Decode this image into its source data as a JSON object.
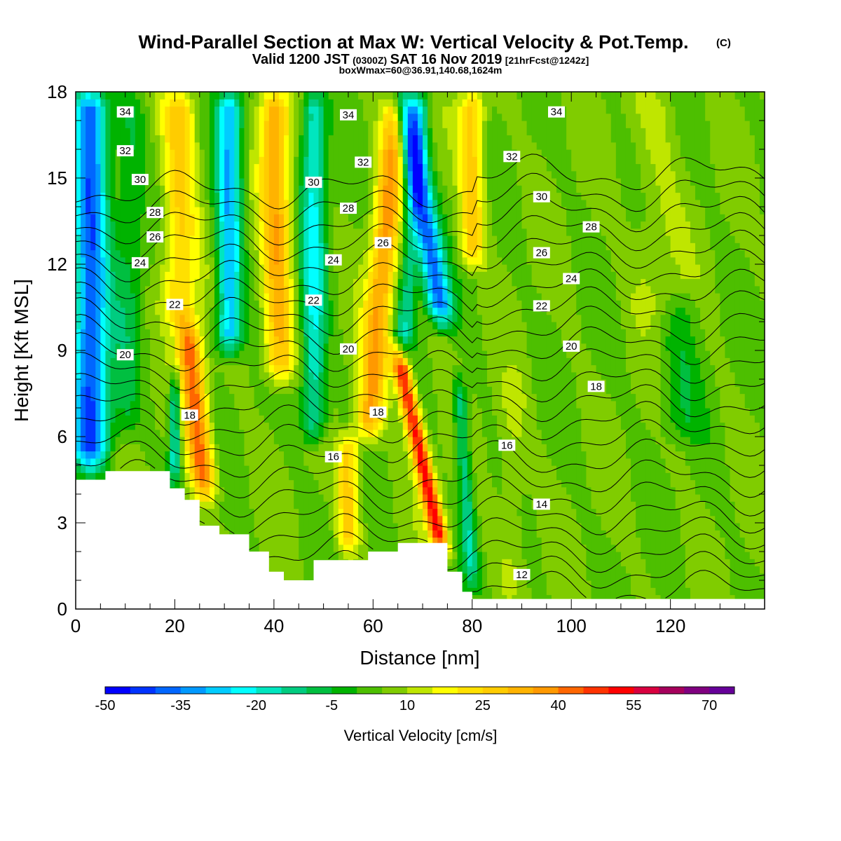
{
  "chart_data": {
    "type": "heatmap",
    "title": "Wind-Parallel Section at Max W: Vertical Velocity & Pot.Temp.",
    "title_mark": "(C)",
    "subtitle_main": "Valid 1200 JST",
    "subtitle_utc": "(0300Z)",
    "subtitle_date": "SAT 16 Nov 2019",
    "subtitle_run": "[21hrFcst@1242z]",
    "subtitle2": "boxWmax=60@36.91,140.68,1624m",
    "xlabel": "Distance [nm]",
    "ylabel": "Height [Kft MSL]",
    "xlim": [
      0,
      139
    ],
    "ylim": [
      0,
      18
    ],
    "x_ticks": [
      "0",
      "20",
      "40",
      "60",
      "80",
      "100",
      "120"
    ],
    "y_ticks": [
      "0",
      "3",
      "6",
      "9",
      "12",
      "15",
      "18"
    ],
    "colorbar": {
      "label": "Vertical Velocity [cm/s]",
      "tick_labels": [
        "-50",
        "-35",
        "-20",
        "-5",
        "10",
        "25",
        "40",
        "55",
        "70"
      ],
      "tick_values": [
        -50,
        -35,
        -20,
        -5,
        10,
        25,
        40,
        55,
        70
      ],
      "min": -50,
      "step": 5,
      "colors": [
        "#0000ff",
        "#0033ff",
        "#0066ff",
        "#0099ff",
        "#00ccff",
        "#00ffff",
        "#00e6bf",
        "#00cc80",
        "#00bf40",
        "#00b300",
        "#4dbf00",
        "#80cc00",
        "#bfe600",
        "#ffff00",
        "#ffe000",
        "#ffcc00",
        "#ffb300",
        "#ff9900",
        "#ff6600",
        "#ff3300",
        "#ff0000",
        "#d9003f",
        "#a6005c",
        "#800080",
        "#660099"
      ]
    },
    "terrain_kft": [
      [
        0,
        4.5
      ],
      [
        6,
        4.5
      ],
      [
        6,
        4.8
      ],
      [
        19,
        4.8
      ],
      [
        19,
        4.2
      ],
      [
        22,
        4.2
      ],
      [
        22,
        3.8
      ],
      [
        25,
        3.8
      ],
      [
        25,
        2.9
      ],
      [
        29,
        2.9
      ],
      [
        29,
        2.6
      ],
      [
        35,
        2.6
      ],
      [
        35,
        2.0
      ],
      [
        39,
        2.0
      ],
      [
        39,
        1.3
      ],
      [
        42,
        1.3
      ],
      [
        42,
        1.0
      ],
      [
        48,
        1.0
      ],
      [
        48,
        1.7
      ],
      [
        59,
        1.7
      ],
      [
        59,
        2.0
      ],
      [
        65,
        2.0
      ],
      [
        65,
        2.3
      ],
      [
        75,
        2.3
      ],
      [
        75,
        1.3
      ],
      [
        78,
        1.3
      ],
      [
        78,
        0.6
      ],
      [
        80,
        0.6
      ],
      [
        80,
        0.35
      ],
      [
        139,
        0.35
      ]
    ],
    "w_bands": [
      {
        "x": 3,
        "w": -45,
        "z0": 5,
        "z1": 18,
        "sig": 3.5,
        "tilt": 0
      },
      {
        "x": 10,
        "w": -10,
        "z0": 6,
        "z1": 18,
        "sig": 3,
        "tilt": 0.1
      },
      {
        "x": 21,
        "w": 22,
        "z0": 10,
        "z1": 18,
        "sig": 3.5,
        "tilt": 0
      },
      {
        "x": 26,
        "w": 38,
        "z0": 4,
        "z1": 10,
        "sig": 2.5,
        "tilt": -0.6
      },
      {
        "x": 20,
        "w": -25,
        "z0": 4.5,
        "z1": 8,
        "sig": 1.2,
        "tilt": 0
      },
      {
        "x": 31,
        "w": -35,
        "z0": 9,
        "z1": 18,
        "sig": 2.5,
        "tilt": 0
      },
      {
        "x": 41,
        "w": 28,
        "z0": 8,
        "z1": 18,
        "sig": 3,
        "tilt": -0.1
      },
      {
        "x": 48,
        "w": -25,
        "z0": 6,
        "z1": 18,
        "sig": 2.5,
        "tilt": 0
      },
      {
        "x": 55,
        "w": 22,
        "z0": 2,
        "z1": 6,
        "sig": 2.2,
        "tilt": 0
      },
      {
        "x": 59,
        "w": 30,
        "z0": 6,
        "z1": 18,
        "sig": 2.8,
        "tilt": 0.5
      },
      {
        "x": 66,
        "w": -18,
        "z0": 9,
        "z1": 18,
        "sig": 2,
        "tilt": 0.4
      },
      {
        "x": 74,
        "w": 48,
        "z0": 2,
        "z1": 9,
        "sig": 1.8,
        "tilt": -1.3
      },
      {
        "x": 74,
        "w": -42,
        "z0": 10,
        "z1": 18,
        "sig": 2.5,
        "tilt": -1.0
      },
      {
        "x": 80,
        "w": 22,
        "z0": 12,
        "z1": 18,
        "sig": 2.5,
        "tilt": 0
      },
      {
        "x": 80,
        "w": -20,
        "z0": 1,
        "z1": 8,
        "sig": 1.5,
        "tilt": -0.4
      },
      {
        "x": 88,
        "w": 6,
        "z0": 0.5,
        "z1": 8,
        "sig": 3,
        "tilt": 0
      },
      {
        "x": 117,
        "w": 6,
        "z0": 10,
        "z1": 18,
        "sig": 5,
        "tilt": 0
      },
      {
        "x": 122,
        "w": -8,
        "z0": 6,
        "z1": 11,
        "sig": 4,
        "tilt": 0
      }
    ],
    "theta_levels": [
      12,
      13,
      14,
      15,
      16,
      17,
      18,
      19,
      20,
      21,
      22,
      23,
      24,
      25,
      26,
      27,
      28,
      29,
      30,
      31,
      32,
      33,
      34
    ],
    "theta_labels": [
      {
        "text": "34",
        "x": 10,
        "z": 17.3
      },
      {
        "text": "32",
        "x": 10,
        "z": 15.95
      },
      {
        "text": "30",
        "x": 13,
        "z": 14.95
      },
      {
        "text": "28",
        "x": 16,
        "z": 13.8
      },
      {
        "text": "26",
        "x": 16,
        "z": 12.95
      },
      {
        "text": "24",
        "x": 13,
        "z": 12.05
      },
      {
        "text": "22",
        "x": 20,
        "z": 10.6
      },
      {
        "text": "20",
        "x": 10,
        "z": 8.85
      },
      {
        "text": "18",
        "x": 23,
        "z": 6.75
      },
      {
        "text": "34",
        "x": 55,
        "z": 17.2
      },
      {
        "text": "32",
        "x": 58,
        "z": 15.55
      },
      {
        "text": "30",
        "x": 48,
        "z": 14.85
      },
      {
        "text": "28",
        "x": 55,
        "z": 13.95
      },
      {
        "text": "26",
        "x": 62,
        "z": 12.75
      },
      {
        "text": "24",
        "x": 52,
        "z": 12.15
      },
      {
        "text": "22",
        "x": 48,
        "z": 10.75
      },
      {
        "text": "20",
        "x": 55,
        "z": 9.05
      },
      {
        "text": "18",
        "x": 61,
        "z": 6.85
      },
      {
        "text": "16",
        "x": 52,
        "z": 5.3
      },
      {
        "text": "34",
        "x": 97,
        "z": 17.3
      },
      {
        "text": "32",
        "x": 88,
        "z": 15.75
      },
      {
        "text": "30",
        "x": 94,
        "z": 14.35
      },
      {
        "text": "28",
        "x": 104,
        "z": 13.3
      },
      {
        "text": "26",
        "x": 94,
        "z": 12.4
      },
      {
        "text": "24",
        "x": 100,
        "z": 11.5
      },
      {
        "text": "22",
        "x": 94,
        "z": 10.55
      },
      {
        "text": "20",
        "x": 100,
        "z": 9.15
      },
      {
        "text": "18",
        "x": 105,
        "z": 7.75
      },
      {
        "text": "16",
        "x": 87,
        "z": 5.7
      },
      {
        "text": "14",
        "x": 94,
        "z": 3.65
      },
      {
        "text": "12",
        "x": 90,
        "z": 1.2
      }
    ]
  }
}
